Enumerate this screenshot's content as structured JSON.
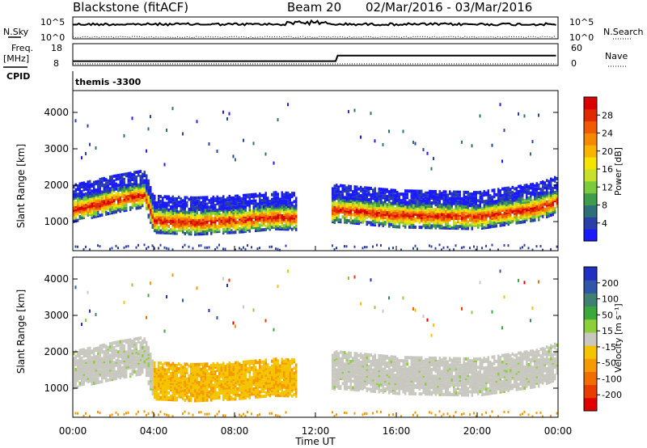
{
  "header": {
    "station": "Blackstone (fitACF)",
    "beam": "Beam 20",
    "date_range": "02/Mar/2016 - 03/Mar/2016"
  },
  "summary": {
    "nsky_label": "N.Sky",
    "nsearch_label": "N.Search",
    "freq_label": "Freq.",
    "freq_unit": "[MHz]",
    "nave_label": "Nave",
    "cpid_label": "CPID",
    "cpid_value": "themis -3300",
    "nsky_ticks": [
      "10^5",
      "10^0"
    ],
    "freq_ticks": [
      "18",
      "8"
    ],
    "nave_ticks": [
      "60",
      "0"
    ]
  },
  "axes": {
    "ylabel": "Slant Range [km]",
    "xlabel": "Time UT",
    "yticks": [
      "1000",
      "2000",
      "3000",
      "4000"
    ],
    "xticks": [
      "00:00",
      "04:00",
      "08:00",
      "12:00",
      "16:00",
      "20:00",
      "00:00"
    ]
  },
  "power_colorbar": {
    "label": "Power [dB]",
    "ticks": [
      "4",
      "8",
      "12",
      "16",
      "20",
      "24",
      "28"
    ],
    "colors": [
      "#1a1aff",
      "#2a40a8",
      "#2e6f78",
      "#3f9c4a",
      "#7ccb3c",
      "#c8e02a",
      "#f5e400",
      "#f7b500",
      "#f58a00",
      "#f05a00",
      "#e02a00",
      "#d80000"
    ]
  },
  "velocity_colorbar": {
    "label": "Velocity [m s⁻¹]",
    "ticks": [
      "200",
      "100",
      "50",
      "15",
      "-15",
      "-50",
      "-100",
      "-200"
    ],
    "colors": [
      "#2030c0",
      "#3056a8",
      "#3f8070",
      "#3aa83a",
      "#8ccf3a",
      "#c8c8c0",
      "#f5c400",
      "#f59a00",
      "#f06e00",
      "#e83c00",
      "#e00000"
    ]
  },
  "chart_data": {
    "type": "heatmap",
    "title": "Blackstone (fitACF)",
    "xlabel": "Time UT",
    "ylabel": "Slant Range [km]",
    "xlim": [
      "02/Mar/2016 00:00",
      "03/Mar/2016 00:00"
    ],
    "ylim": [
      200,
      4600
    ],
    "panels": [
      "Power [dB]",
      "Velocity [m s-1]"
    ],
    "cpid": "themis -3300",
    "freq_mhz_range": [
      8,
      18
    ],
    "freq_mhz_before_1300": 10,
    "freq_mhz_after_1300": 12.5,
    "power_band_center_km": {
      "00:00": 1500,
      "02:00": 1750,
      "03:30": 1900,
      "04:00": 1200,
      "06:00": 1150,
      "08:00": 1200,
      "10:00": 1300,
      "12:00": 1250,
      "13:00": 1500,
      "16:00": 1350,
      "20:00": 1300,
      "23:00": 1550,
      "24:00": 1750
    },
    "scatter_gaps": [
      [
        "11:00",
        "12:45"
      ]
    ]
  }
}
